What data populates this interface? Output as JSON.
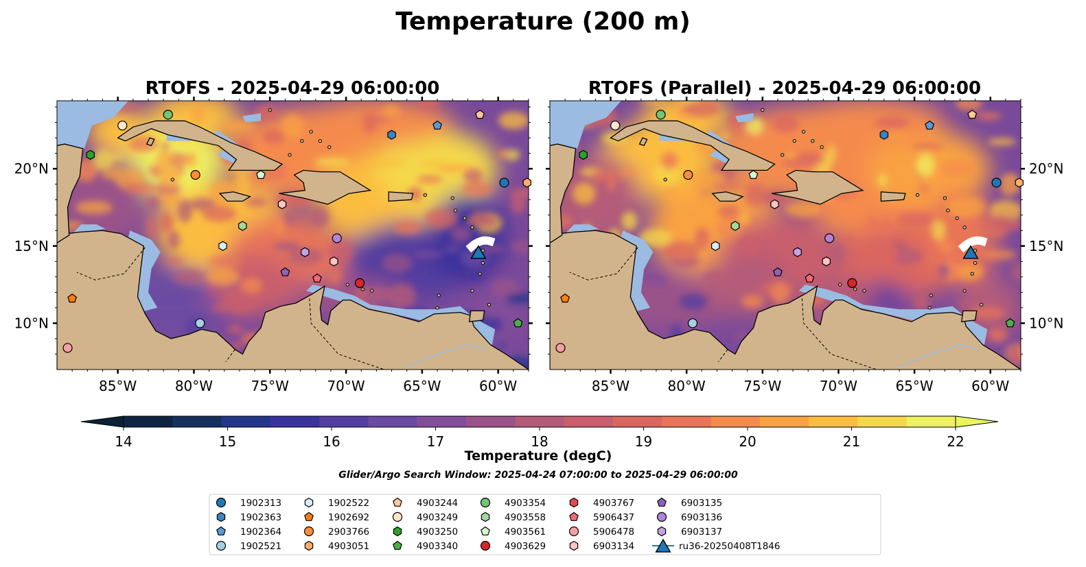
{
  "figure": {
    "title": "Temperature (200 m)",
    "search_window": "Glider/Argo Search Window: 2025-04-24 07:00:00 to 2025-04-29 06:00:00"
  },
  "maps": [
    {
      "title": "RTOFS - 2025-04-29 06:00:00",
      "variant": "operational"
    },
    {
      "title": "RTOFS (Parallel) - 2025-04-29 06:00:00",
      "variant": "parallel"
    }
  ],
  "axes": {
    "lon_ticks": [
      "85°W",
      "80°W",
      "75°W",
      "70°W",
      "65°W",
      "60°W"
    ],
    "lat_ticks": [
      "20°N",
      "15°N",
      "10°N"
    ]
  },
  "colorbar": {
    "label": "Temperature (degC)",
    "min": 14,
    "max": 22,
    "ticks": [
      "14",
      "15",
      "16",
      "17",
      "18",
      "19",
      "20",
      "21",
      "22"
    ],
    "colors": [
      "#0f2442",
      "#16305e",
      "#23368a",
      "#3b329b",
      "#533d9f",
      "#6a4ba1",
      "#824e9a",
      "#9a5389",
      "#b45b79",
      "#c95f6d",
      "#da6660",
      "#e87559",
      "#f48b4d",
      "#f9a242",
      "#fbbd3f",
      "#f4d84b",
      "#eef160"
    ],
    "under_color": "#0b2236",
    "over_color": "#e8f55c"
  },
  "legend": {
    "entries": [
      {
        "id": "1902313",
        "color": "#1f77b4",
        "marker": "circle"
      },
      {
        "id": "1902363",
        "color": "#3e82c0",
        "marker": "hexagon"
      },
      {
        "id": "1902364",
        "color": "#5b9bd5",
        "marker": "pentagon"
      },
      {
        "id": "1902521",
        "color": "#a6cee3",
        "marker": "circle"
      },
      {
        "id": "1902522",
        "color": "#d7eafa",
        "marker": "hexagon"
      },
      {
        "id": "1902692",
        "color": "#ff7f0e",
        "marker": "pentagon"
      },
      {
        "id": "2903766",
        "color": "#fd8d3c",
        "marker": "circle"
      },
      {
        "id": "4903051",
        "color": "#fdae6b",
        "marker": "hexagon"
      },
      {
        "id": "4903244",
        "color": "#fdc89b",
        "marker": "pentagon"
      },
      {
        "id": "4903249",
        "color": "#fee6ce",
        "marker": "circle"
      },
      {
        "id": "4903250",
        "color": "#2ca02c",
        "marker": "hexagon"
      },
      {
        "id": "4903340",
        "color": "#4daf4a",
        "marker": "pentagon"
      },
      {
        "id": "4903354",
        "color": "#74c476",
        "marker": "circle"
      },
      {
        "id": "4903558",
        "color": "#a1d99b",
        "marker": "hexagon"
      },
      {
        "id": "4903561",
        "color": "#d8f5d0",
        "marker": "pentagon"
      },
      {
        "id": "4903629",
        "color": "#d62728",
        "marker": "circle"
      },
      {
        "id": "4903767",
        "color": "#e34a4f",
        "marker": "hexagon"
      },
      {
        "id": "5906437",
        "color": "#ef6b73",
        "marker": "pentagon"
      },
      {
        "id": "5906478",
        "color": "#f4a0a0",
        "marker": "circle"
      },
      {
        "id": "6903134",
        "color": "#fcc5c0",
        "marker": "hexagon"
      },
      {
        "id": "6903135",
        "color": "#8e63b5",
        "marker": "pentagon"
      },
      {
        "id": "6903136",
        "color": "#b084d6",
        "marker": "circle"
      },
      {
        "id": "6903137",
        "color": "#c6a3e4",
        "marker": "hexagon"
      },
      {
        "id": "ru36-20250408T1846",
        "color": "#1f77b4",
        "marker": "triangle"
      }
    ]
  },
  "floats": [
    {
      "id": "4903249",
      "lon": -84.7,
      "lat": 22.8
    },
    {
      "id": "4903354",
      "lon": -81.7,
      "lat": 23.5
    },
    {
      "id": "4903250",
      "lon": -86.8,
      "lat": 20.9
    },
    {
      "id": "2903766",
      "lon": -79.9,
      "lat": 19.6
    },
    {
      "id": "4903561",
      "lon": -75.6,
      "lat": 19.6
    },
    {
      "id": "6903134",
      "lon": -74.2,
      "lat": 17.7
    },
    {
      "id": "4903558",
      "lon": -76.8,
      "lat": 16.3
    },
    {
      "id": "1902522",
      "lon": -78.1,
      "lat": 15.0
    },
    {
      "id": "6903136",
      "lon": -70.6,
      "lat": 15.5
    },
    {
      "id": "6903137",
      "lon": -72.7,
      "lat": 14.6
    },
    {
      "id": "6903134",
      "lon": -70.8,
      "lat": 14.0
    },
    {
      "id": "6903135",
      "lon": -74.0,
      "lat": 13.3
    },
    {
      "id": "5906437",
      "lon": -71.9,
      "lat": 12.9
    },
    {
      "id": "4903629",
      "lon": -69.1,
      "lat": 12.6
    },
    {
      "id": "1902363",
      "lon": -67.0,
      "lat": 22.2
    },
    {
      "id": "1902364",
      "lon": -64.0,
      "lat": 22.8
    },
    {
      "id": "4903244",
      "lon": -61.2,
      "lat": 23.5
    },
    {
      "id": "1902313",
      "lon": -59.6,
      "lat": 19.1
    },
    {
      "id": "4903051",
      "lon": -58.1,
      "lat": 19.1
    },
    {
      "id": "1902692",
      "lon": -88.0,
      "lat": 11.6
    },
    {
      "id": "5906478",
      "lon": -88.3,
      "lat": 8.4
    },
    {
      "id": "1902521",
      "lon": -79.6,
      "lat": 10.0
    },
    {
      "id": "4903340",
      "lon": -58.7,
      "lat": 10.0
    }
  ],
  "glider": {
    "id": "ru36-20250408T1846",
    "lon": -61.3,
    "lat": 14.6
  }
}
